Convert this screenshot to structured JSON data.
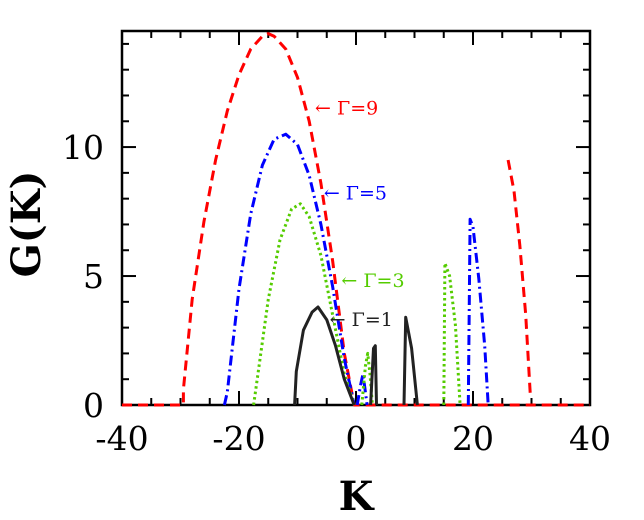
{
  "chart_data": {
    "type": "line",
    "xlabel": "K",
    "ylabel": "G(K)",
    "xlim": [
      -40,
      40
    ],
    "ylim": [
      0,
      14.5
    ],
    "x_ticks": [
      -40,
      -20,
      0,
      20,
      40
    ],
    "x_tick_labels": [
      "-40",
      "-20",
      "0",
      "20",
      "40"
    ],
    "y_ticks": [
      0,
      5,
      10
    ],
    "y_tick_labels": [
      "0",
      "5",
      "10"
    ],
    "grid": false,
    "legend": "none",
    "series": [
      {
        "name": "Γ=9",
        "color": "#ff0000",
        "dash": "dashed",
        "segments": [
          [
            [
              -40,
              0
            ],
            [
              -29.5,
              0
            ],
            [
              -29.5,
              0.6
            ],
            [
              -28,
              4.1
            ],
            [
              -26,
              7.1
            ],
            [
              -24,
              9.5
            ],
            [
              -22,
              11.4
            ],
            [
              -20,
              12.8
            ],
            [
              -18,
              13.8
            ],
            [
              -16,
              14.3
            ],
            [
              -15,
              14.4
            ],
            [
              -14,
              14.3
            ],
            [
              -12,
              13.8
            ],
            [
              -10,
              12.7
            ],
            [
              -8,
              11
            ],
            [
              -6,
              8.6
            ],
            [
              -4,
              5.6
            ],
            [
              -2,
              2
            ],
            [
              -0.3,
              0
            ],
            [
              40,
              0
            ]
          ],
          [
            [
              26,
              9.5
            ],
            [
              27,
              8.3
            ],
            [
              28,
              6.2
            ],
            [
              29,
              3.5
            ],
            [
              29.8,
              0.4
            ]
          ]
        ]
      },
      {
        "name": "Γ=5",
        "color": "#0000ff",
        "dash": "dashdot",
        "segments": [
          [
            [
              -22.5,
              0
            ],
            [
              -22,
              0.5
            ],
            [
              -20,
              4.5
            ],
            [
              -18,
              7.4
            ],
            [
              -16,
              9.3
            ],
            [
              -14,
              10.3
            ],
            [
              -12,
              10.5
            ],
            [
              -10,
              10.1
            ],
            [
              -8,
              8.9
            ],
            [
              -6,
              7
            ],
            [
              -4,
              4.6
            ],
            [
              -2,
              1.8
            ],
            [
              -0.3,
              0
            ]
          ],
          [
            [
              0.2,
              0
            ],
            [
              0.8,
              0.8
            ],
            [
              1.2,
              1.2
            ],
            [
              1.6,
              0.5
            ],
            [
              1.9,
              0
            ]
          ],
          [
            [
              19.2,
              0
            ],
            [
              19.5,
              7.2
            ],
            [
              20,
              6.9
            ],
            [
              21,
              4.9
            ],
            [
              22,
              2.3
            ],
            [
              22.6,
              0
            ]
          ]
        ]
      },
      {
        "name": "Γ=3",
        "color": "#55cc00",
        "dash": "dotted",
        "segments": [
          [
            [
              -17.5,
              0
            ],
            [
              -17,
              0.8
            ],
            [
              -15,
              4.1
            ],
            [
              -13,
              6.4
            ],
            [
              -11,
              7.6
            ],
            [
              -9.5,
              7.8
            ],
            [
              -8,
              7.3
            ],
            [
              -6,
              5.8
            ],
            [
              -4,
              3.5
            ],
            [
              -2,
              1.2
            ],
            [
              -0.3,
              0
            ]
          ],
          [
            [
              1,
              0
            ],
            [
              1.6,
              1.5
            ],
            [
              2,
              2
            ],
            [
              2.4,
              1.2
            ],
            [
              2.8,
              0
            ]
          ],
          [
            [
              15,
              0
            ],
            [
              15.2,
              5.5
            ],
            [
              16,
              5
            ],
            [
              17,
              3.1
            ],
            [
              17.8,
              0
            ]
          ]
        ]
      },
      {
        "name": "Γ=1",
        "color": "#222222",
        "dash": "solid",
        "segments": [
          [
            [
              -10.5,
              0
            ],
            [
              -10.2,
              1.3
            ],
            [
              -9,
              2.9
            ],
            [
              -7.5,
              3.6
            ],
            [
              -6.5,
              3.8
            ],
            [
              -5,
              3.3
            ],
            [
              -3.5,
              2.3
            ],
            [
              -2,
              1
            ],
            [
              -0.3,
              0
            ]
          ],
          [
            [
              2.5,
              0
            ],
            [
              3,
              2.2
            ],
            [
              3.3,
              2.3
            ],
            [
              3.5,
              0
            ]
          ],
          [
            [
              8.2,
              0
            ],
            [
              8.5,
              3.4
            ],
            [
              9.5,
              2.2
            ],
            [
              10.5,
              0
            ]
          ]
        ]
      }
    ],
    "annotations": [
      {
        "text": "← Γ=9",
        "x": -7,
        "y": 11.5,
        "color": "#ff0000"
      },
      {
        "text": "← Γ=5",
        "x": -5.5,
        "y": 8.2,
        "color": "#0000ff"
      },
      {
        "text": "← Γ=3",
        "x": -2.5,
        "y": 4.8,
        "color": "#55cc00"
      },
      {
        "text": "← Γ=1",
        "x": -4.5,
        "y": 3.3,
        "color": "#222222"
      }
    ]
  }
}
